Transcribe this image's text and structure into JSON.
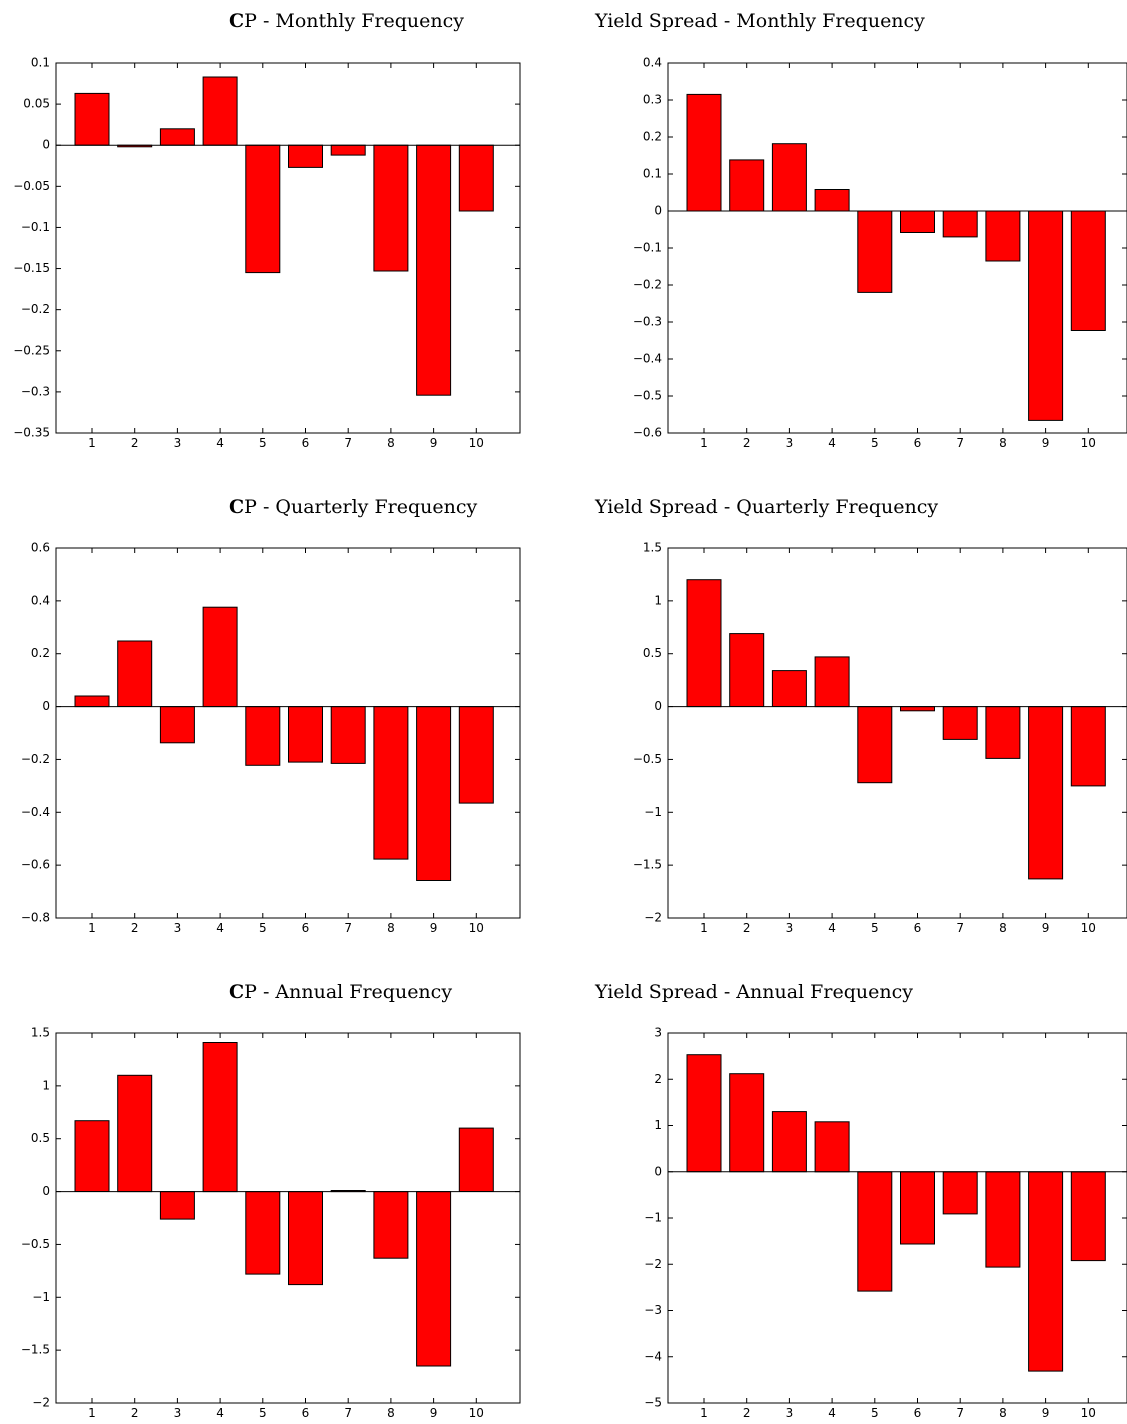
{
  "figure": {
    "background": "#ffffff",
    "bar_color": "#ff0000",
    "edge_color": "#000000"
  },
  "chart_data": [
    {
      "type": "bar",
      "title_bold": "C",
      "title_rest": "P - Monthly Frequency",
      "categories": [
        "1",
        "2",
        "3",
        "4",
        "5",
        "6",
        "7",
        "8",
        "9",
        "10"
      ],
      "values": [
        0.063,
        -0.002,
        0.02,
        0.083,
        -0.155,
        -0.027,
        -0.012,
        -0.153,
        -0.304,
        -0.08
      ],
      "ylim": [
        -0.35,
        0.1
      ],
      "yticks": [
        -0.35,
        -0.3,
        -0.25,
        -0.2,
        -0.15,
        -0.1,
        -0.05,
        0,
        0.05,
        0.1
      ],
      "ytick_labels": [
        "−0.35",
        "−0.3",
        "−0.25",
        "−0.2",
        "−0.15",
        "−0.1",
        "−0.05",
        "0",
        "0.05",
        "0.1"
      ],
      "xlabel": "",
      "ylabel": "",
      "grid": false,
      "legend": null
    },
    {
      "type": "bar",
      "title_bold": "",
      "title_rest": "Yield Spread - Monthly Frequency",
      "categories": [
        "1",
        "2",
        "3",
        "4",
        "5",
        "6",
        "7",
        "8",
        "9",
        "10"
      ],
      "values": [
        0.315,
        0.138,
        0.182,
        0.058,
        -0.22,
        -0.058,
        -0.07,
        -0.135,
        -0.566,
        -0.323
      ],
      "ylim": [
        -0.6,
        0.4
      ],
      "yticks": [
        -0.6,
        -0.5,
        -0.4,
        -0.3,
        -0.2,
        -0.1,
        0,
        0.1,
        0.2,
        0.3,
        0.4
      ],
      "ytick_labels": [
        "−0.6",
        "−0.5",
        "−0.4",
        "−0.3",
        "−0.2",
        "−0.1",
        "0",
        "0.1",
        "0.2",
        "0.3",
        "0.4"
      ],
      "xlabel": "",
      "ylabel": "",
      "grid": false,
      "legend": null
    },
    {
      "type": "bar",
      "title_bold": "C",
      "title_rest": "P - Quarterly Frequency",
      "categories": [
        "1",
        "2",
        "3",
        "4",
        "5",
        "6",
        "7",
        "8",
        "9",
        "10"
      ],
      "values": [
        0.04,
        0.248,
        -0.137,
        0.376,
        -0.222,
        -0.21,
        -0.215,
        -0.577,
        -0.658,
        -0.365
      ],
      "ylim": [
        -0.8,
        0.6
      ],
      "yticks": [
        -0.8,
        -0.6,
        -0.4,
        -0.2,
        0,
        0.2,
        0.4,
        0.6
      ],
      "ytick_labels": [
        "−0.8",
        "−0.6",
        "−0.4",
        "−0.2",
        "0",
        "0.2",
        "0.4",
        "0.6"
      ],
      "xlabel": "",
      "ylabel": "",
      "grid": false,
      "legend": null
    },
    {
      "type": "bar",
      "title_bold": "",
      "title_rest": "Yield Spread - Quarterly Frequency",
      "categories": [
        "1",
        "2",
        "3",
        "4",
        "5",
        "6",
        "7",
        "8",
        "9",
        "10"
      ],
      "values": [
        1.2,
        0.69,
        0.34,
        0.47,
        -0.72,
        -0.04,
        -0.31,
        -0.49,
        -1.63,
        -0.75
      ],
      "ylim": [
        -2,
        1.5
      ],
      "yticks": [
        -2,
        -1.5,
        -1,
        -0.5,
        0,
        0.5,
        1,
        1.5
      ],
      "ytick_labels": [
        "−2",
        "−1.5",
        "−1",
        "−0.5",
        "0",
        "0.5",
        "1",
        "1.5"
      ],
      "xlabel": "",
      "ylabel": "",
      "grid": false,
      "legend": null
    },
    {
      "type": "bar",
      "title_bold": "C",
      "title_rest": "P - Annual Frequency",
      "categories": [
        "1",
        "2",
        "3",
        "4",
        "5",
        "6",
        "7",
        "8",
        "9",
        "10"
      ],
      "values": [
        0.67,
        1.1,
        -0.26,
        1.41,
        -0.78,
        -0.88,
        0.01,
        -0.63,
        -1.65,
        0.6
      ],
      "ylim": [
        -2,
        1.5
      ],
      "yticks": [
        -2,
        -1.5,
        -1,
        -0.5,
        0,
        0.5,
        1,
        1.5
      ],
      "ytick_labels": [
        "−2",
        "−1.5",
        "−1",
        "−0.5",
        "0",
        "0.5",
        "1",
        "1.5"
      ],
      "xlabel": "",
      "ylabel": "",
      "grid": false,
      "legend": null
    },
    {
      "type": "bar",
      "title_bold": "",
      "title_rest": "Yield Spread - Annual Frequency",
      "categories": [
        "1",
        "2",
        "3",
        "4",
        "5",
        "6",
        "7",
        "8",
        "9",
        "10"
      ],
      "values": [
        2.53,
        2.12,
        1.3,
        1.08,
        -2.58,
        -1.56,
        -0.91,
        -2.06,
        -4.31,
        -1.92
      ],
      "ylim": [
        -5,
        3
      ],
      "yticks": [
        -5,
        -4,
        -3,
        -2,
        -1,
        0,
        1,
        2,
        3
      ],
      "ytick_labels": [
        "−5",
        "−4",
        "−3",
        "−2",
        "−1",
        "0",
        "1",
        "2",
        "3"
      ],
      "xlabel": "",
      "ylabel": "",
      "grid": false,
      "legend": null
    }
  ]
}
